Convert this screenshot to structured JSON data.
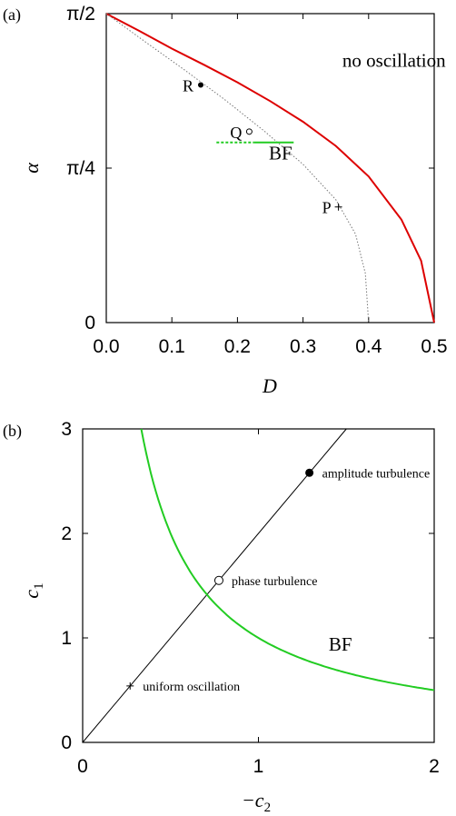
{
  "chart_data": [
    {
      "type": "line",
      "panel_label": "(a)",
      "xlabel": "D",
      "ylabel": "α",
      "xlim": [
        0.0,
        0.5
      ],
      "ylim": [
        0,
        1.5708
      ],
      "xticks": [
        {
          "value": 0.0,
          "label": "0.0"
        },
        {
          "value": 0.1,
          "label": "0.1"
        },
        {
          "value": 0.2,
          "label": "0.2"
        },
        {
          "value": 0.3,
          "label": "0.3"
        },
        {
          "value": 0.4,
          "label": "0.4"
        },
        {
          "value": 0.5,
          "label": "0.5"
        }
      ],
      "yticks": [
        {
          "value": 0,
          "label": "0"
        },
        {
          "value": 0.7854,
          "label": "π/4"
        },
        {
          "value": 1.5708,
          "label": "π/2"
        }
      ],
      "region_label": {
        "text": "no oscillation",
        "x": 0.36,
        "y": 1.3
      },
      "series": [
        {
          "color": "#dd0000",
          "style": "solid",
          "points": [
            [
              0.0,
              1.5708
            ],
            [
              0.05,
              1.4835
            ],
            [
              0.1,
              1.393
            ],
            [
              0.15,
              1.309
            ],
            [
              0.2,
              1.2217
            ],
            [
              0.25,
              1.126
            ],
            [
              0.3,
              1.021
            ],
            [
              0.35,
              0.898
            ],
            [
              0.4,
              0.743
            ],
            [
              0.45,
              0.524
            ],
            [
              0.48,
              0.314
            ],
            [
              0.5,
              0.0
            ]
          ]
        },
        {
          "color": "#777777",
          "style": "dotted",
          "points": [
            [
              0.0,
              1.5708
            ],
            [
              0.06,
              1.426
            ],
            [
              0.12,
              1.283
            ],
            [
              0.18,
              1.135
            ],
            [
              0.24,
              0.976
            ],
            [
              0.3,
              0.805
            ],
            [
              0.35,
              0.625
            ],
            [
              0.38,
              0.45
            ],
            [
              0.395,
              0.25
            ],
            [
              0.4,
              0.0
            ]
          ]
        },
        {
          "name": "BF",
          "color": "#22cc22",
          "style": "solid",
          "points": [
            [
              0.2253,
              0.916
            ],
            [
              0.2857,
              0.916
            ]
          ]
        },
        {
          "color": "#22cc22",
          "style": "dashed",
          "points": [
            [
              0.168,
              0.916
            ],
            [
              0.2253,
              0.916
            ]
          ]
        }
      ],
      "points": [
        {
          "label": "R",
          "x": 0.144,
          "y": 1.208,
          "marker": "filled-circle"
        },
        {
          "label": "Q",
          "x": 0.218,
          "y": 0.971,
          "marker": "open-circle"
        },
        {
          "label": "P",
          "x": 0.354,
          "y": 0.588,
          "marker": "plus"
        }
      ],
      "annotations": [
        {
          "text": "BF",
          "x": 0.248,
          "y": 0.83
        }
      ]
    },
    {
      "type": "line",
      "panel_label": "(b)",
      "xlabel": "−c",
      "xlabel_sub": "2",
      "ylabel": "c",
      "ylabel_sub": "1",
      "xlim": [
        0,
        2
      ],
      "ylim": [
        0,
        3
      ],
      "xticks": [
        {
          "value": 0,
          "label": "0"
        },
        {
          "value": 1,
          "label": "1"
        },
        {
          "value": 2,
          "label": "2"
        }
      ],
      "yticks": [
        {
          "value": 0,
          "label": "0"
        },
        {
          "value": 1,
          "label": "1"
        },
        {
          "value": 2,
          "label": "2"
        },
        {
          "value": 3,
          "label": "3"
        }
      ],
      "series": [
        {
          "color": "#000000",
          "style": "solid",
          "points": [
            [
              0,
              0
            ],
            [
              1.5,
              3.0
            ]
          ]
        },
        {
          "name": "BF",
          "color": "#22cc22",
          "style": "solid",
          "function": "1/x",
          "x_range": [
            0.3333,
            2.0
          ]
        }
      ],
      "points": [
        {
          "label": "amplitude turbulence",
          "x": 1.29,
          "y": 2.58,
          "marker": "filled-circle"
        },
        {
          "label": "phase turbulence",
          "x": 0.775,
          "y": 1.55,
          "marker": "open-circle"
        },
        {
          "label": "uniform oscillation",
          "x": 0.27,
          "y": 0.54,
          "marker": "plus"
        }
      ],
      "annotations": [
        {
          "text": "BF",
          "x": 1.4,
          "y": 0.88
        }
      ]
    }
  ]
}
